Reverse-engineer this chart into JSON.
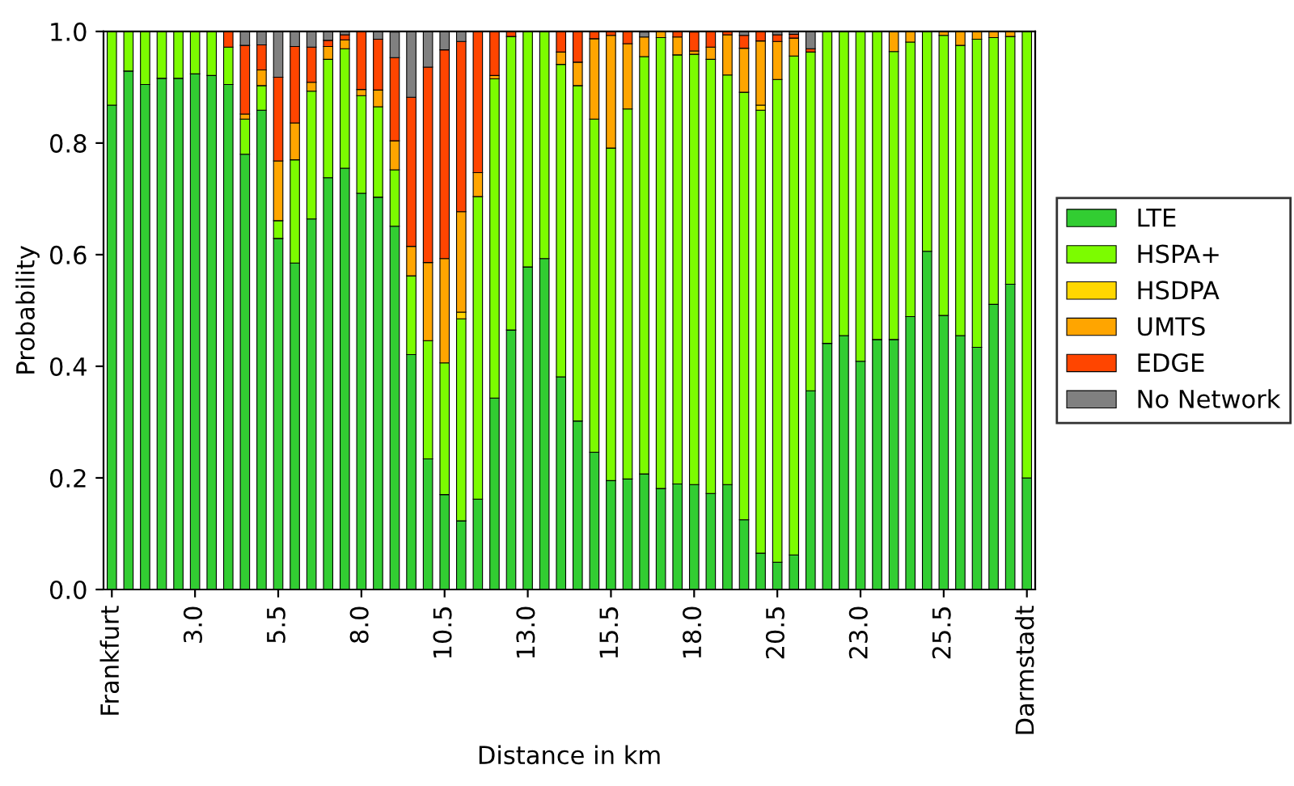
{
  "chart_data": {
    "type": "bar",
    "stacked": true,
    "xlabel": "Distance in km",
    "ylabel": "Probability",
    "x": [
      0.5,
      1.0,
      1.5,
      2.0,
      2.5,
      3.0,
      3.5,
      4.0,
      4.5,
      5.0,
      5.5,
      6.0,
      6.5,
      7.0,
      7.5,
      8.0,
      8.5,
      9.0,
      9.5,
      10.0,
      10.5,
      11.0,
      11.5,
      12.0,
      12.5,
      13.0,
      13.5,
      14.0,
      14.5,
      15.0,
      15.5,
      16.0,
      16.5,
      17.0,
      17.5,
      18.0,
      18.5,
      19.0,
      19.5,
      20.0,
      20.5,
      21.0,
      21.5,
      22.0,
      22.5,
      23.0,
      23.5,
      24.0,
      24.5,
      25.0,
      25.5,
      26.0,
      26.5,
      27.0,
      27.5,
      28.0
    ],
    "series": [
      {
        "name": "LTE",
        "color": "#32cd32",
        "values": [
          0.868,
          0.929,
          0.905,
          0.916,
          0.916,
          0.924,
          0.921,
          0.905,
          0.78,
          0.859,
          0.629,
          0.585,
          0.664,
          0.738,
          0.755,
          0.71,
          0.703,
          0.651,
          0.421,
          0.234,
          0.17,
          0.123,
          0.162,
          0.343,
          0.465,
          0.578,
          0.593,
          0.381,
          0.302,
          0.246,
          0.195,
          0.198,
          0.207,
          0.181,
          0.189,
          0.188,
          0.172,
          0.188,
          0.125,
          0.065,
          0.049,
          0.062,
          0.356,
          0.441,
          0.455,
          0.409,
          0.448,
          0.448,
          0.489,
          0.606,
          0.491,
          0.455,
          0.434,
          0.511,
          0.547,
          0.2
        ]
      },
      {
        "name": "HSPA+",
        "color": "#7cfc00",
        "values": [
          0.132,
          0.071,
          0.095,
          0.084,
          0.084,
          0.076,
          0.079,
          0.067,
          0.063,
          0.044,
          0.032,
          0.185,
          0.229,
          0.212,
          0.214,
          0.175,
          0.162,
          0.101,
          0.141,
          0.212,
          0.236,
          0.362,
          0.542,
          0.572,
          0.526,
          0.422,
          0.407,
          0.56,
          0.601,
          0.597,
          0.596,
          0.663,
          0.748,
          0.808,
          0.769,
          0.771,
          0.778,
          0.734,
          0.766,
          0.794,
          0.865,
          0.894,
          0.607,
          0.559,
          0.545,
          0.591,
          0.552,
          0.516,
          0.492,
          0.394,
          0.502,
          0.52,
          0.552,
          0.478,
          0.444,
          0.8
        ]
      },
      {
        "name": "HSDPA",
        "color": "#ffd700",
        "values": [
          null,
          null,
          null,
          null,
          null,
          null,
          null,
          null,
          null,
          null,
          null,
          null,
          null,
          null,
          null,
          null,
          null,
          null,
          null,
          null,
          null,
          0.012,
          null,
          null,
          null,
          null,
          null,
          null,
          null,
          null,
          null,
          null,
          null,
          null,
          null,
          null,
          null,
          null,
          null,
          0.009,
          null,
          null,
          null,
          null,
          null,
          null,
          null,
          null,
          null,
          null,
          null,
          null,
          null,
          null,
          null,
          null
        ]
      },
      {
        "name": "UMTS",
        "color": "#ffa500",
        "values": [
          null,
          null,
          null,
          null,
          null,
          null,
          null,
          null,
          0.009,
          0.028,
          0.107,
          0.066,
          0.016,
          0.023,
          0.016,
          0.011,
          0.03,
          0.052,
          0.053,
          0.14,
          0.187,
          0.18,
          0.043,
          0.006,
          null,
          null,
          null,
          0.022,
          0.042,
          0.144,
          0.202,
          0.117,
          0.035,
          0.011,
          0.032,
          0.006,
          0.022,
          0.072,
          0.079,
          0.115,
          0.068,
          0.032,
          null,
          null,
          null,
          null,
          null,
          0.036,
          0.019,
          null,
          0.007,
          0.025,
          0.014,
          0.011,
          0.009,
          null
        ]
      },
      {
        "name": "EDGE",
        "color": "#ff4500",
        "values": [
          null,
          null,
          null,
          null,
          null,
          null,
          null,
          0.028,
          0.123,
          0.045,
          0.15,
          0.137,
          0.063,
          0.011,
          0.009,
          0.104,
          0.091,
          0.149,
          0.267,
          0.35,
          0.374,
          0.305,
          0.253,
          0.079,
          0.009,
          null,
          null,
          0.037,
          0.056,
          0.013,
          0.007,
          0.022,
          null,
          null,
          0.01,
          0.034,
          0.028,
          0.006,
          0.023,
          0.017,
          0.012,
          0.007,
          0.006,
          null,
          null,
          null,
          null,
          null,
          null,
          null,
          null,
          null,
          null,
          null,
          null,
          null
        ]
      },
      {
        "name": "No Network",
        "color": "#808080",
        "values": [
          null,
          null,
          null,
          null,
          null,
          null,
          null,
          null,
          0.025,
          0.025,
          0.082,
          0.027,
          0.028,
          0.016,
          0.006,
          null,
          0.015,
          0.046,
          0.118,
          0.064,
          0.033,
          0.019,
          null,
          null,
          null,
          null,
          null,
          null,
          null,
          null,
          null,
          null,
          0.009,
          null,
          null,
          null,
          null,
          null,
          0.007,
          null,
          0.006,
          0.005,
          0.032,
          null,
          null,
          null,
          null,
          null,
          null,
          null,
          null,
          null,
          null,
          null,
          null,
          null
        ]
      }
    ],
    "xlim": [
      0.25,
      28.25
    ],
    "xticks": [
      {
        "value": 0.5,
        "label": "Frankfurt"
      },
      {
        "value": 3.0,
        "label": "3.0"
      },
      {
        "value": 5.5,
        "label": "5.5"
      },
      {
        "value": 8.0,
        "label": "8.0"
      },
      {
        "value": 10.5,
        "label": "10.5"
      },
      {
        "value": 13.0,
        "label": "13.0"
      },
      {
        "value": 15.5,
        "label": "15.5"
      },
      {
        "value": 18.0,
        "label": "18.0"
      },
      {
        "value": 20.5,
        "label": "20.5"
      },
      {
        "value": 23.0,
        "label": "23.0"
      },
      {
        "value": 25.5,
        "label": "25.5"
      },
      {
        "value": 28.0,
        "label": "Darmstadt"
      }
    ],
    "ylim": [
      0,
      1
    ],
    "yticks": [
      {
        "value": 0,
        "label": "0.0"
      },
      {
        "value": 0.2,
        "label": "0.2"
      },
      {
        "value": 0.4,
        "label": "0.4"
      },
      {
        "value": 0.6,
        "label": "0.6"
      },
      {
        "value": 0.8,
        "label": "0.8"
      },
      {
        "value": 1.0,
        "label": "1.0"
      }
    ],
    "grid": false,
    "legend": "right"
  }
}
